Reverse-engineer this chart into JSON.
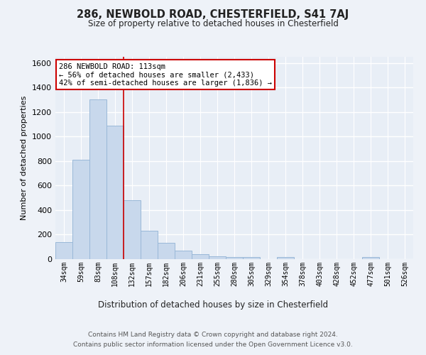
{
  "title": "286, NEWBOLD ROAD, CHESTERFIELD, S41 7AJ",
  "subtitle": "Size of property relative to detached houses in Chesterfield",
  "xlabel": "Distribution of detached houses by size in Chesterfield",
  "ylabel": "Number of detached properties",
  "categories": [
    "34sqm",
    "59sqm",
    "83sqm",
    "108sqm",
    "132sqm",
    "157sqm",
    "182sqm",
    "206sqm",
    "231sqm",
    "255sqm",
    "280sqm",
    "305sqm",
    "329sqm",
    "354sqm",
    "378sqm",
    "403sqm",
    "428sqm",
    "452sqm",
    "477sqm",
    "501sqm",
    "526sqm"
  ],
  "values": [
    140,
    810,
    1300,
    1090,
    480,
    230,
    135,
    70,
    38,
    25,
    20,
    15,
    0,
    15,
    0,
    0,
    0,
    0,
    20,
    0,
    0
  ],
  "bar_color": "#c8d8ec",
  "bar_edge_color": "#9ab8d8",
  "vline_x": 3.5,
  "vline_color": "#cc0000",
  "annotation_text": "286 NEWBOLD ROAD: 113sqm\n← 56% of detached houses are smaller (2,433)\n42% of semi-detached houses are larger (1,836) →",
  "annotation_box_color": "#ffffff",
  "annotation_box_edge": "#cc0000",
  "ylim": [
    0,
    1650
  ],
  "yticks": [
    0,
    200,
    400,
    600,
    800,
    1000,
    1200,
    1400,
    1600
  ],
  "footer_line1": "Contains HM Land Registry data © Crown copyright and database right 2024.",
  "footer_line2": "Contains public sector information licensed under the Open Government Licence v3.0.",
  "bg_color": "#eef2f8",
  "plot_bg_color": "#e8eef6"
}
